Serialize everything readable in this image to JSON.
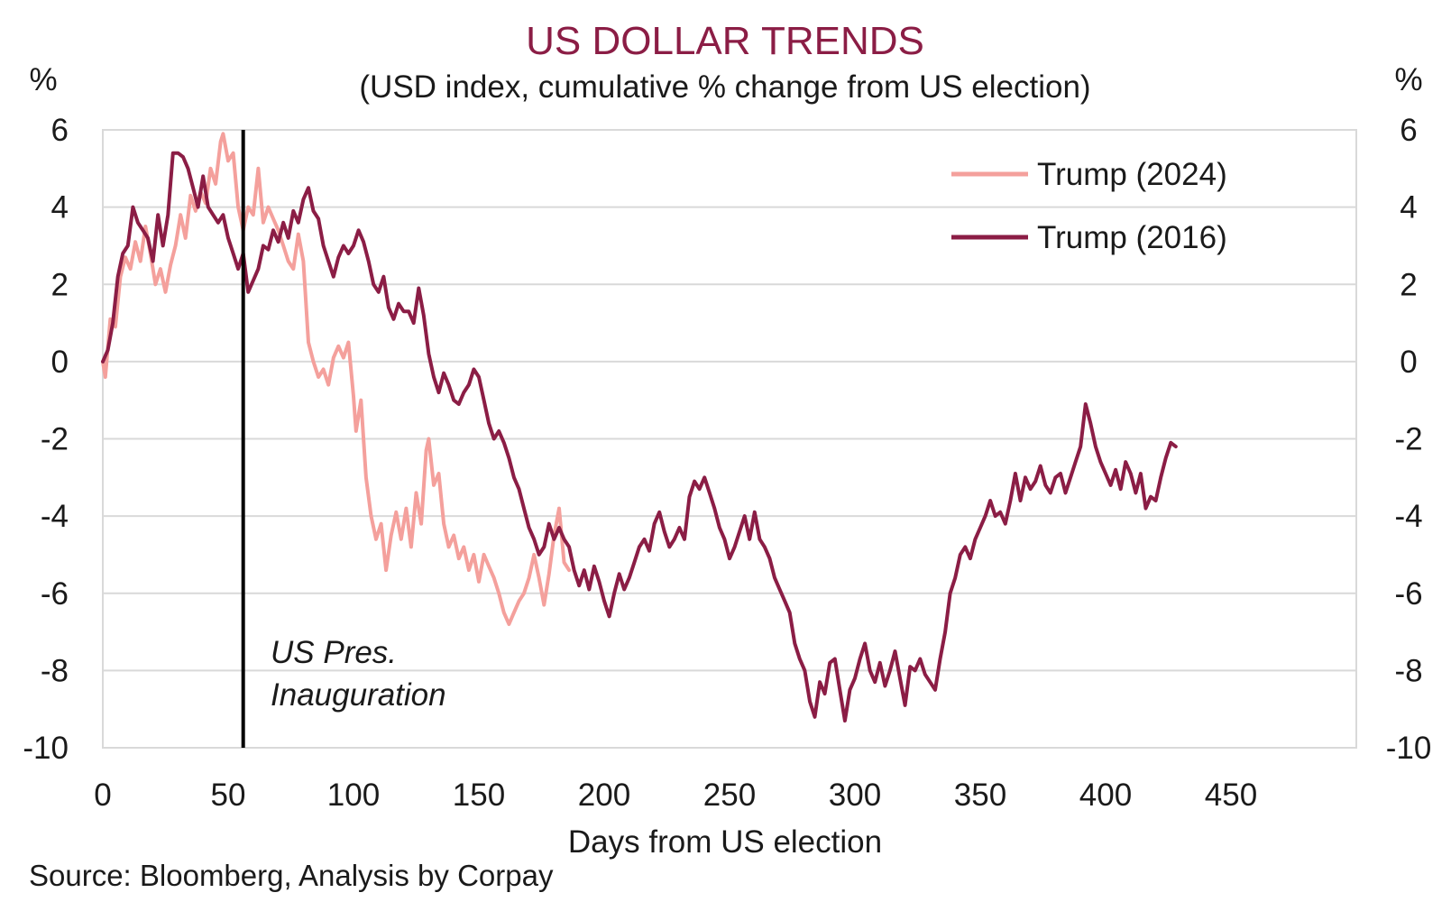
{
  "chart_data": {
    "type": "line",
    "title": "US DOLLAR TRENDS",
    "subtitle": "(USD index, cumulative % change from US election)",
    "xlabel": "Days from US election",
    "ylabel_left": "%",
    "ylabel_right": "%",
    "source": "Source: Bloomberg, Analysis by Corpay",
    "xlim": [
      0,
      500
    ],
    "ylim": [
      -10,
      6
    ],
    "x_ticks": [
      0,
      50,
      100,
      150,
      200,
      250,
      300,
      350,
      400,
      450
    ],
    "y_ticks": [
      6,
      4,
      2,
      0,
      -2,
      -4,
      -6,
      -8,
      -10
    ],
    "grid": "horizontal",
    "legend_position": "top-right",
    "annotation": {
      "lines": [
        "US Pres.",
        "Inauguration"
      ],
      "x": 56
    },
    "series": [
      {
        "name": "Trump (2024)",
        "color": "#f4a09c",
        "points": [
          [
            0,
            0
          ],
          [
            1,
            -0.4
          ],
          [
            3,
            1.1
          ],
          [
            5,
            0.9
          ],
          [
            7,
            2.2
          ],
          [
            9,
            2.7
          ],
          [
            11,
            2.4
          ],
          [
            13,
            3.1
          ],
          [
            15,
            2.6
          ],
          [
            17,
            3.5
          ],
          [
            19,
            2.8
          ],
          [
            21,
            2.0
          ],
          [
            23,
            2.4
          ],
          [
            25,
            1.8
          ],
          [
            27,
            2.5
          ],
          [
            29,
            3.0
          ],
          [
            31,
            3.8
          ],
          [
            33,
            3.2
          ],
          [
            35,
            4.3
          ],
          [
            37,
            3.9
          ],
          [
            39,
            4.4
          ],
          [
            41,
            4.1
          ],
          [
            43,
            5.0
          ],
          [
            45,
            4.6
          ],
          [
            47,
            5.7
          ],
          [
            48,
            5.9
          ],
          [
            50,
            5.2
          ],
          [
            52,
            5.4
          ],
          [
            54,
            4.0
          ],
          [
            56,
            3.4
          ],
          [
            58,
            4.0
          ],
          [
            60,
            3.8
          ],
          [
            62,
            5.0
          ],
          [
            64,
            3.6
          ],
          [
            66,
            4.0
          ],
          [
            68,
            3.7
          ],
          [
            70,
            3.4
          ],
          [
            72,
            3.0
          ],
          [
            74,
            2.6
          ],
          [
            76,
            2.4
          ],
          [
            78,
            3.3
          ],
          [
            80,
            2.6
          ],
          [
            82,
            0.5
          ],
          [
            84,
            0
          ],
          [
            86,
            -0.4
          ],
          [
            88,
            -0.2
          ],
          [
            90,
            -0.6
          ],
          [
            92,
            0.1
          ],
          [
            94,
            0.4
          ],
          [
            96,
            0.1
          ],
          [
            98,
            0.5
          ],
          [
            100,
            -0.9
          ],
          [
            101,
            -1.8
          ],
          [
            103,
            -1.0
          ],
          [
            105,
            -3.0
          ],
          [
            107,
            -4.0
          ],
          [
            109,
            -4.6
          ],
          [
            111,
            -4.2
          ],
          [
            113,
            -5.4
          ],
          [
            115,
            -4.5
          ],
          [
            117,
            -3.9
          ],
          [
            119,
            -4.6
          ],
          [
            121,
            -3.8
          ],
          [
            123,
            -4.8
          ],
          [
            125,
            -3.4
          ],
          [
            127,
            -4.2
          ],
          [
            129,
            -2.3
          ],
          [
            130,
            -2.0
          ],
          [
            132,
            -3.2
          ],
          [
            134,
            -2.9
          ],
          [
            136,
            -4.2
          ],
          [
            138,
            -4.8
          ],
          [
            140,
            -4.5
          ],
          [
            142,
            -5.1
          ],
          [
            144,
            -4.8
          ],
          [
            146,
            -5.4
          ],
          [
            148,
            -5.0
          ],
          [
            150,
            -5.7
          ],
          [
            152,
            -5.0
          ],
          [
            154,
            -5.3
          ],
          [
            156,
            -5.6
          ],
          [
            158,
            -6.0
          ],
          [
            160,
            -6.5
          ],
          [
            162,
            -6.8
          ],
          [
            164,
            -6.5
          ],
          [
            166,
            -6.2
          ],
          [
            168,
            -6.0
          ],
          [
            170,
            -5.6
          ],
          [
            172,
            -5.0
          ],
          [
            174,
            -5.6
          ],
          [
            176,
            -6.3
          ],
          [
            178,
            -5.5
          ],
          [
            180,
            -4.5
          ],
          [
            182,
            -3.8
          ],
          [
            184,
            -5.2
          ],
          [
            186,
            -5.4
          ]
        ]
      },
      {
        "name": "Trump (2016)",
        "color": "#8b1d45",
        "points": [
          [
            0,
            0
          ],
          [
            2,
            0.3
          ],
          [
            4,
            1.0
          ],
          [
            6,
            2.2
          ],
          [
            8,
            2.8
          ],
          [
            10,
            3.0
          ],
          [
            12,
            4.0
          ],
          [
            14,
            3.6
          ],
          [
            16,
            3.4
          ],
          [
            18,
            3.2
          ],
          [
            20,
            2.6
          ],
          [
            22,
            3.8
          ],
          [
            24,
            3.0
          ],
          [
            26,
            3.8
          ],
          [
            28,
            5.4
          ],
          [
            30,
            5.4
          ],
          [
            32,
            5.3
          ],
          [
            34,
            5.0
          ],
          [
            36,
            4.5
          ],
          [
            38,
            4.0
          ],
          [
            40,
            4.8
          ],
          [
            42,
            4.0
          ],
          [
            44,
            3.8
          ],
          [
            46,
            3.6
          ],
          [
            48,
            3.8
          ],
          [
            50,
            3.2
          ],
          [
            52,
            2.8
          ],
          [
            54,
            2.4
          ],
          [
            56,
            2.8
          ],
          [
            58,
            1.8
          ],
          [
            60,
            2.1
          ],
          [
            62,
            2.4
          ],
          [
            64,
            3.0
          ],
          [
            66,
            2.9
          ],
          [
            68,
            3.4
          ],
          [
            70,
            3.1
          ],
          [
            72,
            3.6
          ],
          [
            74,
            3.2
          ],
          [
            76,
            3.9
          ],
          [
            78,
            3.6
          ],
          [
            80,
            4.2
          ],
          [
            82,
            4.5
          ],
          [
            84,
            3.9
          ],
          [
            86,
            3.7
          ],
          [
            88,
            3.0
          ],
          [
            90,
            2.6
          ],
          [
            92,
            2.2
          ],
          [
            94,
            2.7
          ],
          [
            96,
            3.0
          ],
          [
            98,
            2.8
          ],
          [
            100,
            3.0
          ],
          [
            102,
            3.4
          ],
          [
            104,
            3.1
          ],
          [
            106,
            2.6
          ],
          [
            108,
            2.0
          ],
          [
            110,
            1.8
          ],
          [
            112,
            2.2
          ],
          [
            114,
            1.4
          ],
          [
            116,
            1.1
          ],
          [
            118,
            1.5
          ],
          [
            120,
            1.3
          ],
          [
            122,
            1.3
          ],
          [
            124,
            1.0
          ],
          [
            126,
            1.9
          ],
          [
            128,
            1.2
          ],
          [
            130,
            0.2
          ],
          [
            132,
            -0.4
          ],
          [
            134,
            -0.8
          ],
          [
            136,
            -0.3
          ],
          [
            138,
            -0.6
          ],
          [
            140,
            -1.0
          ],
          [
            142,
            -1.1
          ],
          [
            144,
            -0.8
          ],
          [
            146,
            -0.6
          ],
          [
            148,
            -0.2
          ],
          [
            150,
            -0.4
          ],
          [
            152,
            -1.0
          ],
          [
            154,
            -1.6
          ],
          [
            156,
            -2.0
          ],
          [
            158,
            -1.8
          ],
          [
            160,
            -2.1
          ],
          [
            162,
            -2.5
          ],
          [
            164,
            -3.0
          ],
          [
            166,
            -3.3
          ],
          [
            168,
            -3.8
          ],
          [
            170,
            -4.3
          ],
          [
            172,
            -4.6
          ],
          [
            174,
            -5.0
          ],
          [
            176,
            -4.8
          ],
          [
            178,
            -4.2
          ],
          [
            180,
            -4.6
          ],
          [
            182,
            -4.3
          ],
          [
            184,
            -4.6
          ],
          [
            186,
            -4.8
          ],
          [
            188,
            -5.4
          ],
          [
            190,
            -5.8
          ],
          [
            192,
            -5.4
          ],
          [
            194,
            -5.9
          ],
          [
            196,
            -5.3
          ],
          [
            198,
            -5.7
          ],
          [
            200,
            -6.2
          ],
          [
            202,
            -6.6
          ],
          [
            204,
            -6.0
          ],
          [
            206,
            -5.5
          ],
          [
            208,
            -5.9
          ],
          [
            210,
            -5.6
          ],
          [
            212,
            -5.2
          ],
          [
            214,
            -4.8
          ],
          [
            216,
            -4.6
          ],
          [
            218,
            -4.9
          ],
          [
            220,
            -4.2
          ],
          [
            222,
            -3.9
          ],
          [
            224,
            -4.4
          ],
          [
            226,
            -4.8
          ],
          [
            228,
            -4.6
          ],
          [
            230,
            -4.3
          ],
          [
            232,
            -4.6
          ],
          [
            234,
            -3.5
          ],
          [
            236,
            -3.1
          ],
          [
            238,
            -3.3
          ],
          [
            240,
            -3.0
          ],
          [
            242,
            -3.4
          ],
          [
            244,
            -3.8
          ],
          [
            246,
            -4.3
          ],
          [
            248,
            -4.6
          ],
          [
            250,
            -5.1
          ],
          [
            252,
            -4.8
          ],
          [
            254,
            -4.4
          ],
          [
            256,
            -4.0
          ],
          [
            258,
            -4.6
          ],
          [
            260,
            -3.9
          ],
          [
            262,
            -4.6
          ],
          [
            264,
            -4.8
          ],
          [
            266,
            -5.1
          ],
          [
            268,
            -5.6
          ],
          [
            270,
            -5.9
          ],
          [
            272,
            -6.2
          ],
          [
            274,
            -6.5
          ],
          [
            276,
            -7.3
          ],
          [
            278,
            -7.7
          ],
          [
            280,
            -8.0
          ],
          [
            282,
            -8.8
          ],
          [
            284,
            -9.2
          ],
          [
            286,
            -8.3
          ],
          [
            288,
            -8.6
          ],
          [
            290,
            -7.8
          ],
          [
            292,
            -7.7
          ],
          [
            294,
            -8.5
          ],
          [
            296,
            -9.3
          ],
          [
            298,
            -8.5
          ],
          [
            300,
            -8.2
          ],
          [
            302,
            -7.7
          ],
          [
            304,
            -7.3
          ],
          [
            306,
            -8.0
          ],
          [
            308,
            -8.3
          ],
          [
            310,
            -7.8
          ],
          [
            312,
            -8.4
          ],
          [
            314,
            -8.0
          ],
          [
            316,
            -7.5
          ],
          [
            318,
            -8.2
          ],
          [
            320,
            -8.9
          ],
          [
            322,
            -7.9
          ],
          [
            324,
            -8.0
          ],
          [
            326,
            -7.7
          ],
          [
            328,
            -8.1
          ],
          [
            330,
            -8.3
          ],
          [
            332,
            -8.5
          ],
          [
            334,
            -7.7
          ],
          [
            336,
            -7.0
          ],
          [
            338,
            -6.0
          ],
          [
            340,
            -5.6
          ],
          [
            342,
            -5.0
          ],
          [
            344,
            -4.8
          ],
          [
            346,
            -5.1
          ],
          [
            348,
            -4.6
          ],
          [
            350,
            -4.3
          ],
          [
            352,
            -4.0
          ],
          [
            354,
            -3.6
          ],
          [
            356,
            -4.0
          ],
          [
            358,
            -3.9
          ],
          [
            360,
            -4.2
          ],
          [
            362,
            -3.6
          ],
          [
            364,
            -2.9
          ],
          [
            366,
            -3.6
          ],
          [
            368,
            -3.0
          ],
          [
            370,
            -3.3
          ],
          [
            372,
            -3.1
          ],
          [
            374,
            -2.7
          ],
          [
            376,
            -3.2
          ],
          [
            378,
            -3.4
          ],
          [
            380,
            -3.0
          ],
          [
            382,
            -2.9
          ],
          [
            384,
            -3.4
          ],
          [
            386,
            -3.0
          ],
          [
            388,
            -2.6
          ],
          [
            390,
            -2.2
          ],
          [
            392,
            -1.1
          ],
          [
            394,
            -1.6
          ],
          [
            396,
            -2.2
          ],
          [
            398,
            -2.6
          ],
          [
            400,
            -2.9
          ],
          [
            402,
            -3.2
          ],
          [
            404,
            -2.8
          ],
          [
            406,
            -3.3
          ],
          [
            408,
            -2.6
          ],
          [
            410,
            -2.9
          ],
          [
            412,
            -3.4
          ],
          [
            414,
            -2.9
          ],
          [
            416,
            -3.8
          ],
          [
            418,
            -3.5
          ],
          [
            420,
            -3.6
          ],
          [
            422,
            -3.0
          ],
          [
            424,
            -2.5
          ],
          [
            426,
            -2.1
          ],
          [
            428,
            -2.2
          ]
        ]
      }
    ]
  }
}
